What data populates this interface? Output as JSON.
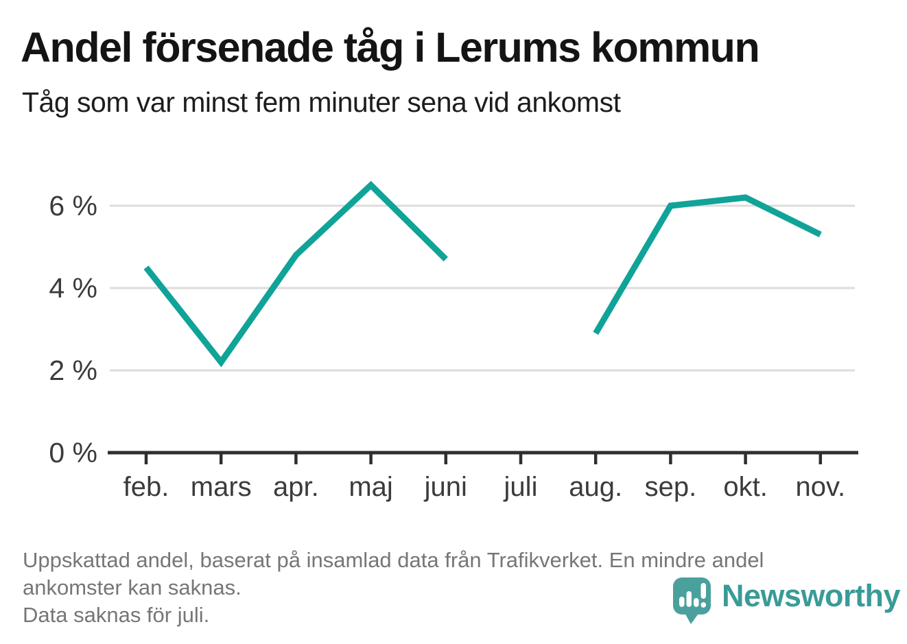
{
  "chart_data": {
    "type": "line",
    "title": "Andel försenade tåg i Lerums kommun",
    "subtitle": "Tåg som var minst fem minuter sena vid ankomst",
    "categories": [
      "feb.",
      "mars",
      "apr.",
      "maj",
      "juni",
      "juli",
      "aug.",
      "sep.",
      "okt.",
      "nov."
    ],
    "series": [
      {
        "name": "Andel försenade tåg",
        "values": [
          4.5,
          2.2,
          4.8,
          6.5,
          4.7,
          null,
          2.9,
          6.0,
          6.2,
          5.3
        ]
      }
    ],
    "unit": "%",
    "ylim": [
      0,
      7
    ],
    "yticks": [
      0,
      2,
      4,
      6
    ],
    "ytick_suffix": " %",
    "xlabel": "",
    "ylabel": "",
    "grid": true,
    "legend_position": "none",
    "missing_data_categories": [
      "juli"
    ]
  },
  "footer": {
    "notes": [
      "Uppskattad andel, baserat på insamlad data från Trafikverket. En mindre andel",
      "ankomster kan saknas.",
      "Data saknas för juli."
    ],
    "logo_text": "Newsworthy",
    "logo_icon": "newsworthy-speech-bubble-barchart-icon"
  },
  "colors": {
    "line": "#10a398",
    "gridline": "#dcdcdc",
    "axis": "#2f2f2f",
    "tick_label": "#3b3b3b",
    "title": "#141414",
    "note": "#767676",
    "brand_teal": "#399b97",
    "brand_icon": "#4aa09d",
    "background": "#ffffff"
  }
}
